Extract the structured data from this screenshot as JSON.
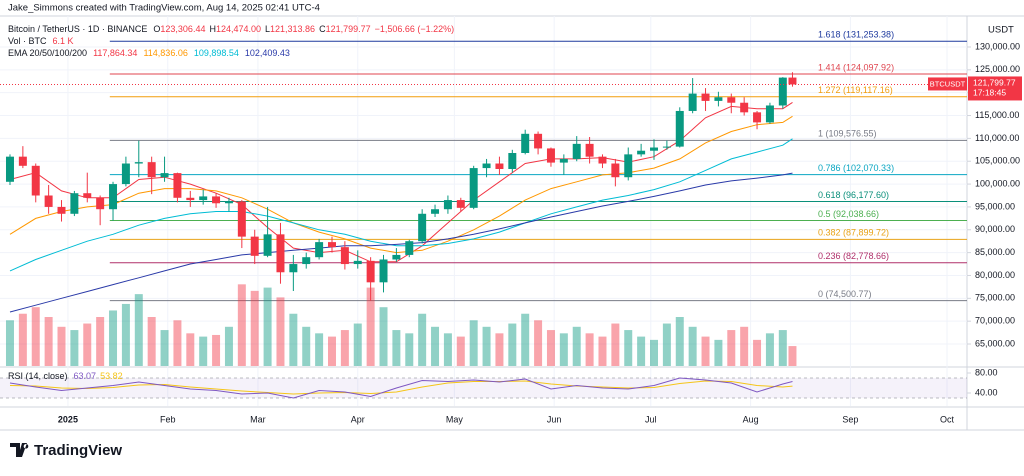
{
  "chart_data": {
    "type": "candlestick",
    "credit": "Jake_Simmons created with TradingView.com, Aug 14, 2025 02:41 UTC-4",
    "currency": "USDT",
    "symbol": "Bitcoin / TetherUS · 1D · BINANCE",
    "ohlc_labels": [
      "O",
      "H",
      "L",
      "C"
    ],
    "ohlc_values": [
      "123,306.44",
      "124,474.00",
      "121,313.86",
      "121,799.77"
    ],
    "change": "−1,506.66 (−1.22%)",
    "volume_label": "Vol · BTC",
    "volume_value": "6.1 K",
    "ema_label": "EMA 20/50/100/200",
    "up_color": "#089981",
    "down_color": "#f23645",
    "xlim": [
      -21.1,
      279.2
    ],
    "xticks": [
      {
        "value": 0,
        "label": "2025"
      },
      {
        "value": 31,
        "label": "Feb"
      },
      {
        "value": 59,
        "label": "Mar"
      },
      {
        "value": 90,
        "label": "Apr"
      },
      {
        "value": 120,
        "label": "May"
      },
      {
        "value": 151,
        "label": "Jun"
      },
      {
        "value": 181,
        "label": "Jul"
      },
      {
        "value": 212,
        "label": "Aug"
      },
      {
        "value": 243,
        "label": "Sep"
      },
      {
        "value": 273,
        "label": "Oct"
      }
    ],
    "ylim": [
      60190,
      136780
    ],
    "yticks": [
      {
        "value": 65000,
        "label": "65,000.00"
      },
      {
        "value": 70000,
        "label": "70,000.00"
      },
      {
        "value": 75000,
        "label": "75,000.00"
      },
      {
        "value": 80000,
        "label": "80,000.00"
      },
      {
        "value": 85000,
        "label": "85,000.00"
      },
      {
        "value": 90000,
        "label": "90,000.00"
      },
      {
        "value": 95000,
        "label": "95,000.00"
      },
      {
        "value": 100000,
        "label": "100,000.00"
      },
      {
        "value": 105000,
        "label": "105,000.00"
      },
      {
        "value": 110000,
        "label": "110,000.00"
      },
      {
        "value": 115000,
        "label": "115,000.00"
      },
      {
        "value": 120000,
        "label": "120,000.00"
      },
      {
        "value": 125000,
        "label": "125,000.00"
      },
      {
        "value": 130000,
        "label": "130,000.00"
      }
    ],
    "candles": {
      "x": [
        -18,
        -14,
        -10,
        -6,
        -2,
        2,
        6,
        10,
        14,
        18,
        22,
        26,
        30,
        34,
        38,
        42,
        46,
        50,
        54,
        58,
        62,
        66,
        70,
        74,
        78,
        82,
        86,
        90,
        94,
        98,
        102,
        106,
        110,
        114,
        118,
        122,
        126,
        130,
        134,
        138,
        142,
        146,
        150,
        154,
        158,
        162,
        166,
        170,
        174,
        178,
        182,
        186,
        190,
        194,
        198,
        202,
        206,
        210,
        214,
        218,
        222,
        225
      ],
      "open": [
        100500,
        106000,
        104000,
        97500,
        95000,
        93500,
        98000,
        97000,
        94500,
        100000,
        104500,
        104800,
        101500,
        102400,
        97000,
        96500,
        97300,
        95800,
        96200,
        88500,
        84300,
        89000,
        80700,
        82500,
        84000,
        87300,
        86200,
        82500,
        83200,
        78500,
        83500,
        84500,
        87500,
        93500,
        94500,
        96500,
        94800,
        103500,
        104500,
        103300,
        106800,
        111000,
        107800,
        104700,
        105500,
        108800,
        106000,
        104500,
        101500,
        106500,
        107300,
        108000,
        108200,
        116000,
        119800,
        118200,
        119000,
        117800,
        115700,
        113500,
        117200,
        123306.44
      ],
      "high": [
        106500,
        108300,
        104500,
        99800,
        96500,
        98500,
        102500,
        97500,
        100500,
        106000,
        109500,
        106000,
        106000,
        102500,
        98500,
        98800,
        98000,
        97000,
        96500,
        90000,
        95000,
        91500,
        84500,
        85000,
        88000,
        88500,
        87500,
        85500,
        84000,
        84500,
        86000,
        87800,
        94500,
        95500,
        97500,
        97000,
        104000,
        105500,
        106000,
        107500,
        111900,
        111500,
        108000,
        106500,
        110500,
        110300,
        106500,
        105500,
        108000,
        108800,
        109800,
        109500,
        116800,
        123200,
        121000,
        120200,
        119800,
        119000,
        116000,
        117800,
        123400,
        124474.0
      ],
      "low": [
        99800,
        103500,
        96000,
        93500,
        91800,
        93000,
        96000,
        91000,
        92000,
        99500,
        101500,
        97800,
        100500,
        96000,
        95000,
        95500,
        94800,
        94000,
        86000,
        82500,
        84000,
        78200,
        76600,
        81500,
        83500,
        85000,
        81300,
        81500,
        74500,
        76300,
        83000,
        84000,
        87000,
        92800,
        93500,
        94000,
        94500,
        101500,
        102000,
        102500,
        106500,
        106500,
        103800,
        102000,
        105000,
        104500,
        103500,
        99500,
        100800,
        106000,
        105300,
        107500,
        108000,
        115500,
        116000,
        117000,
        115500,
        115000,
        112000,
        113200,
        116500,
        121313.86
      ],
      "close": [
        106000,
        104000,
        97500,
        95000,
        93500,
        98000,
        97000,
        94500,
        100000,
        104500,
        104800,
        101500,
        102400,
        97000,
        96500,
        97300,
        95800,
        96200,
        88500,
        84300,
        89000,
        80700,
        82500,
        84000,
        87300,
        86200,
        82500,
        83200,
        78500,
        83500,
        84500,
        87500,
        93500,
        94500,
        96500,
        94800,
        103500,
        104500,
        103300,
        106800,
        111000,
        107800,
        104700,
        105500,
        108800,
        106000,
        104500,
        101500,
        106500,
        107300,
        108000,
        108200,
        116000,
        119800,
        118200,
        119000,
        117800,
        115700,
        113500,
        117200,
        123300,
        121799.77
      ],
      "volume": [
        14000,
        16000,
        18000,
        15000,
        12000,
        11000,
        13000,
        15000,
        17000,
        19000,
        22000,
        15000,
        11000,
        14000,
        10000,
        9000,
        9500,
        12000,
        25000,
        23000,
        24000,
        21000,
        16000,
        12000,
        10000,
        9000,
        11000,
        13000,
        24000,
        18000,
        11000,
        10000,
        16000,
        12000,
        10000,
        9000,
        14000,
        12000,
        10000,
        13000,
        16000,
        14000,
        11000,
        10000,
        12000,
        10000,
        9000,
        13000,
        11000,
        9000,
        8000,
        13000,
        15000,
        12000,
        9000,
        8000,
        11000,
        12000,
        8000,
        10000,
        11000,
        6100
      ]
    },
    "vlim": [
      0,
      30000
    ],
    "ema_x": [
      -18,
      -10,
      -2,
      6,
      14,
      22,
      30,
      38,
      46,
      54,
      62,
      70,
      78,
      86,
      94,
      102,
      110,
      118,
      126,
      134,
      142,
      150,
      158,
      166,
      174,
      182,
      190,
      198,
      206,
      214,
      222,
      225
    ],
    "emas": [
      {
        "color": "#f23645",
        "value_label": "117,864.34",
        "values": [
          101000,
          102500,
          98500,
          97000,
          97000,
          101000,
          101500,
          100000,
          98000,
          95500,
          90500,
          86000,
          85000,
          85500,
          83000,
          83000,
          86500,
          91500,
          96500,
          100500,
          104500,
          105500,
          105500,
          105800,
          104800,
          106000,
          109500,
          114500,
          117000,
          116500,
          116500,
          117864.34
        ]
      },
      {
        "color": "#ff9800",
        "value_label": "114,836.06",
        "values": [
          89000,
          92500,
          94000,
          95000,
          95500,
          98000,
          99000,
          99000,
          98500,
          97000,
          94500,
          91500,
          89500,
          88000,
          86000,
          85000,
          85500,
          87500,
          90000,
          93000,
          96500,
          99000,
          100500,
          102000,
          102500,
          103500,
          105500,
          109000,
          111500,
          113000,
          113500,
          114836.06
        ]
      },
      {
        "color": "#00bcd4",
        "value_label": "109,898.54",
        "values": [
          81000,
          83500,
          85500,
          87500,
          89000,
          91000,
          92500,
          93500,
          94000,
          94000,
          93000,
          91500,
          90000,
          89000,
          87500,
          86500,
          86500,
          87000,
          88000,
          89500,
          91500,
          93500,
          95000,
          96500,
          97500,
          98800,
          100500,
          103000,
          105500,
          107000,
          108500,
          109898.54
        ]
      },
      {
        "color": "#2a3aa8",
        "value_label": "102,409.43",
        "values": [
          72000,
          73500,
          75000,
          76500,
          78000,
          79500,
          81000,
          82500,
          83500,
          84500,
          85000,
          85500,
          86000,
          86500,
          86500,
          86800,
          87200,
          88000,
          89000,
          90200,
          91500,
          92800,
          94000,
          95200,
          96200,
          97300,
          98500,
          99800,
          100700,
          101300,
          102000,
          102409.43
        ]
      }
    ],
    "fib_from_x": 13,
    "fib_levels": [
      {
        "label": "1.618 (131,253.38)",
        "value": 131253.38,
        "color": "#1e3a9e"
      },
      {
        "label": "1.414 (124,097.92)",
        "value": 124097.92,
        "color": "#e0454f"
      },
      {
        "label": "1.272 (119,117.16)",
        "value": 119117.16,
        "color": "#f29d0c"
      },
      {
        "label": "1 (109,576.55)",
        "value": 109576.55,
        "color": "#787b86"
      },
      {
        "label": "0.786 (102,070.33)",
        "value": 102070.33,
        "color": "#0aa6c2"
      },
      {
        "label": "0.618 (96,177.60)",
        "value": 96177.6,
        "color": "#0a8f7a"
      },
      {
        "label": "0.5 (92,038.66)",
        "value": 92038.66,
        "color": "#4caf50"
      },
      {
        "label": "0.382 (87,899.72)",
        "value": 87899.72,
        "color": "#e8a317"
      },
      {
        "label": "0.236 (82,778.66)",
        "value": 82778.66,
        "color": "#b0306a"
      },
      {
        "label": "0 (74,500.77)",
        "value": 74500.77,
        "color": "#787b86"
      }
    ],
    "price_tag": {
      "symbol": "BTCUSDT",
      "price": "121,799.77",
      "countdown": "17:18:45"
    },
    "rsi_label": "RSI (14, close)",
    "rsi_ylim": [
      14,
      90
    ],
    "rsi_yticks": [
      {
        "value": 80,
        "label": "80.00"
      },
      {
        "value": 40,
        "label": "40.00"
      }
    ],
    "rsi_band": [
      30,
      70
    ],
    "rsi": {
      "color": "#7e57c2",
      "value_label": "63.07",
      "values": [
        60,
        52,
        45,
        50,
        55,
        62,
        55,
        48,
        45,
        38,
        40,
        30,
        45,
        42,
        33,
        50,
        65,
        63,
        66,
        62,
        68,
        48,
        55,
        50,
        48,
        55,
        70,
        66,
        60,
        42,
        58,
        63.07
      ]
    },
    "rsi_ma": {
      "color": "#f5c518",
      "value_label": "53.82",
      "values": [
        55,
        54,
        50,
        49,
        51,
        56,
        57,
        52,
        48,
        44,
        41,
        38,
        40,
        41,
        39,
        42,
        52,
        60,
        63,
        63,
        64,
        58,
        54,
        52,
        50,
        51,
        59,
        64,
        63,
        55,
        52,
        53.82
      ]
    },
    "footer": "TradingView"
  }
}
